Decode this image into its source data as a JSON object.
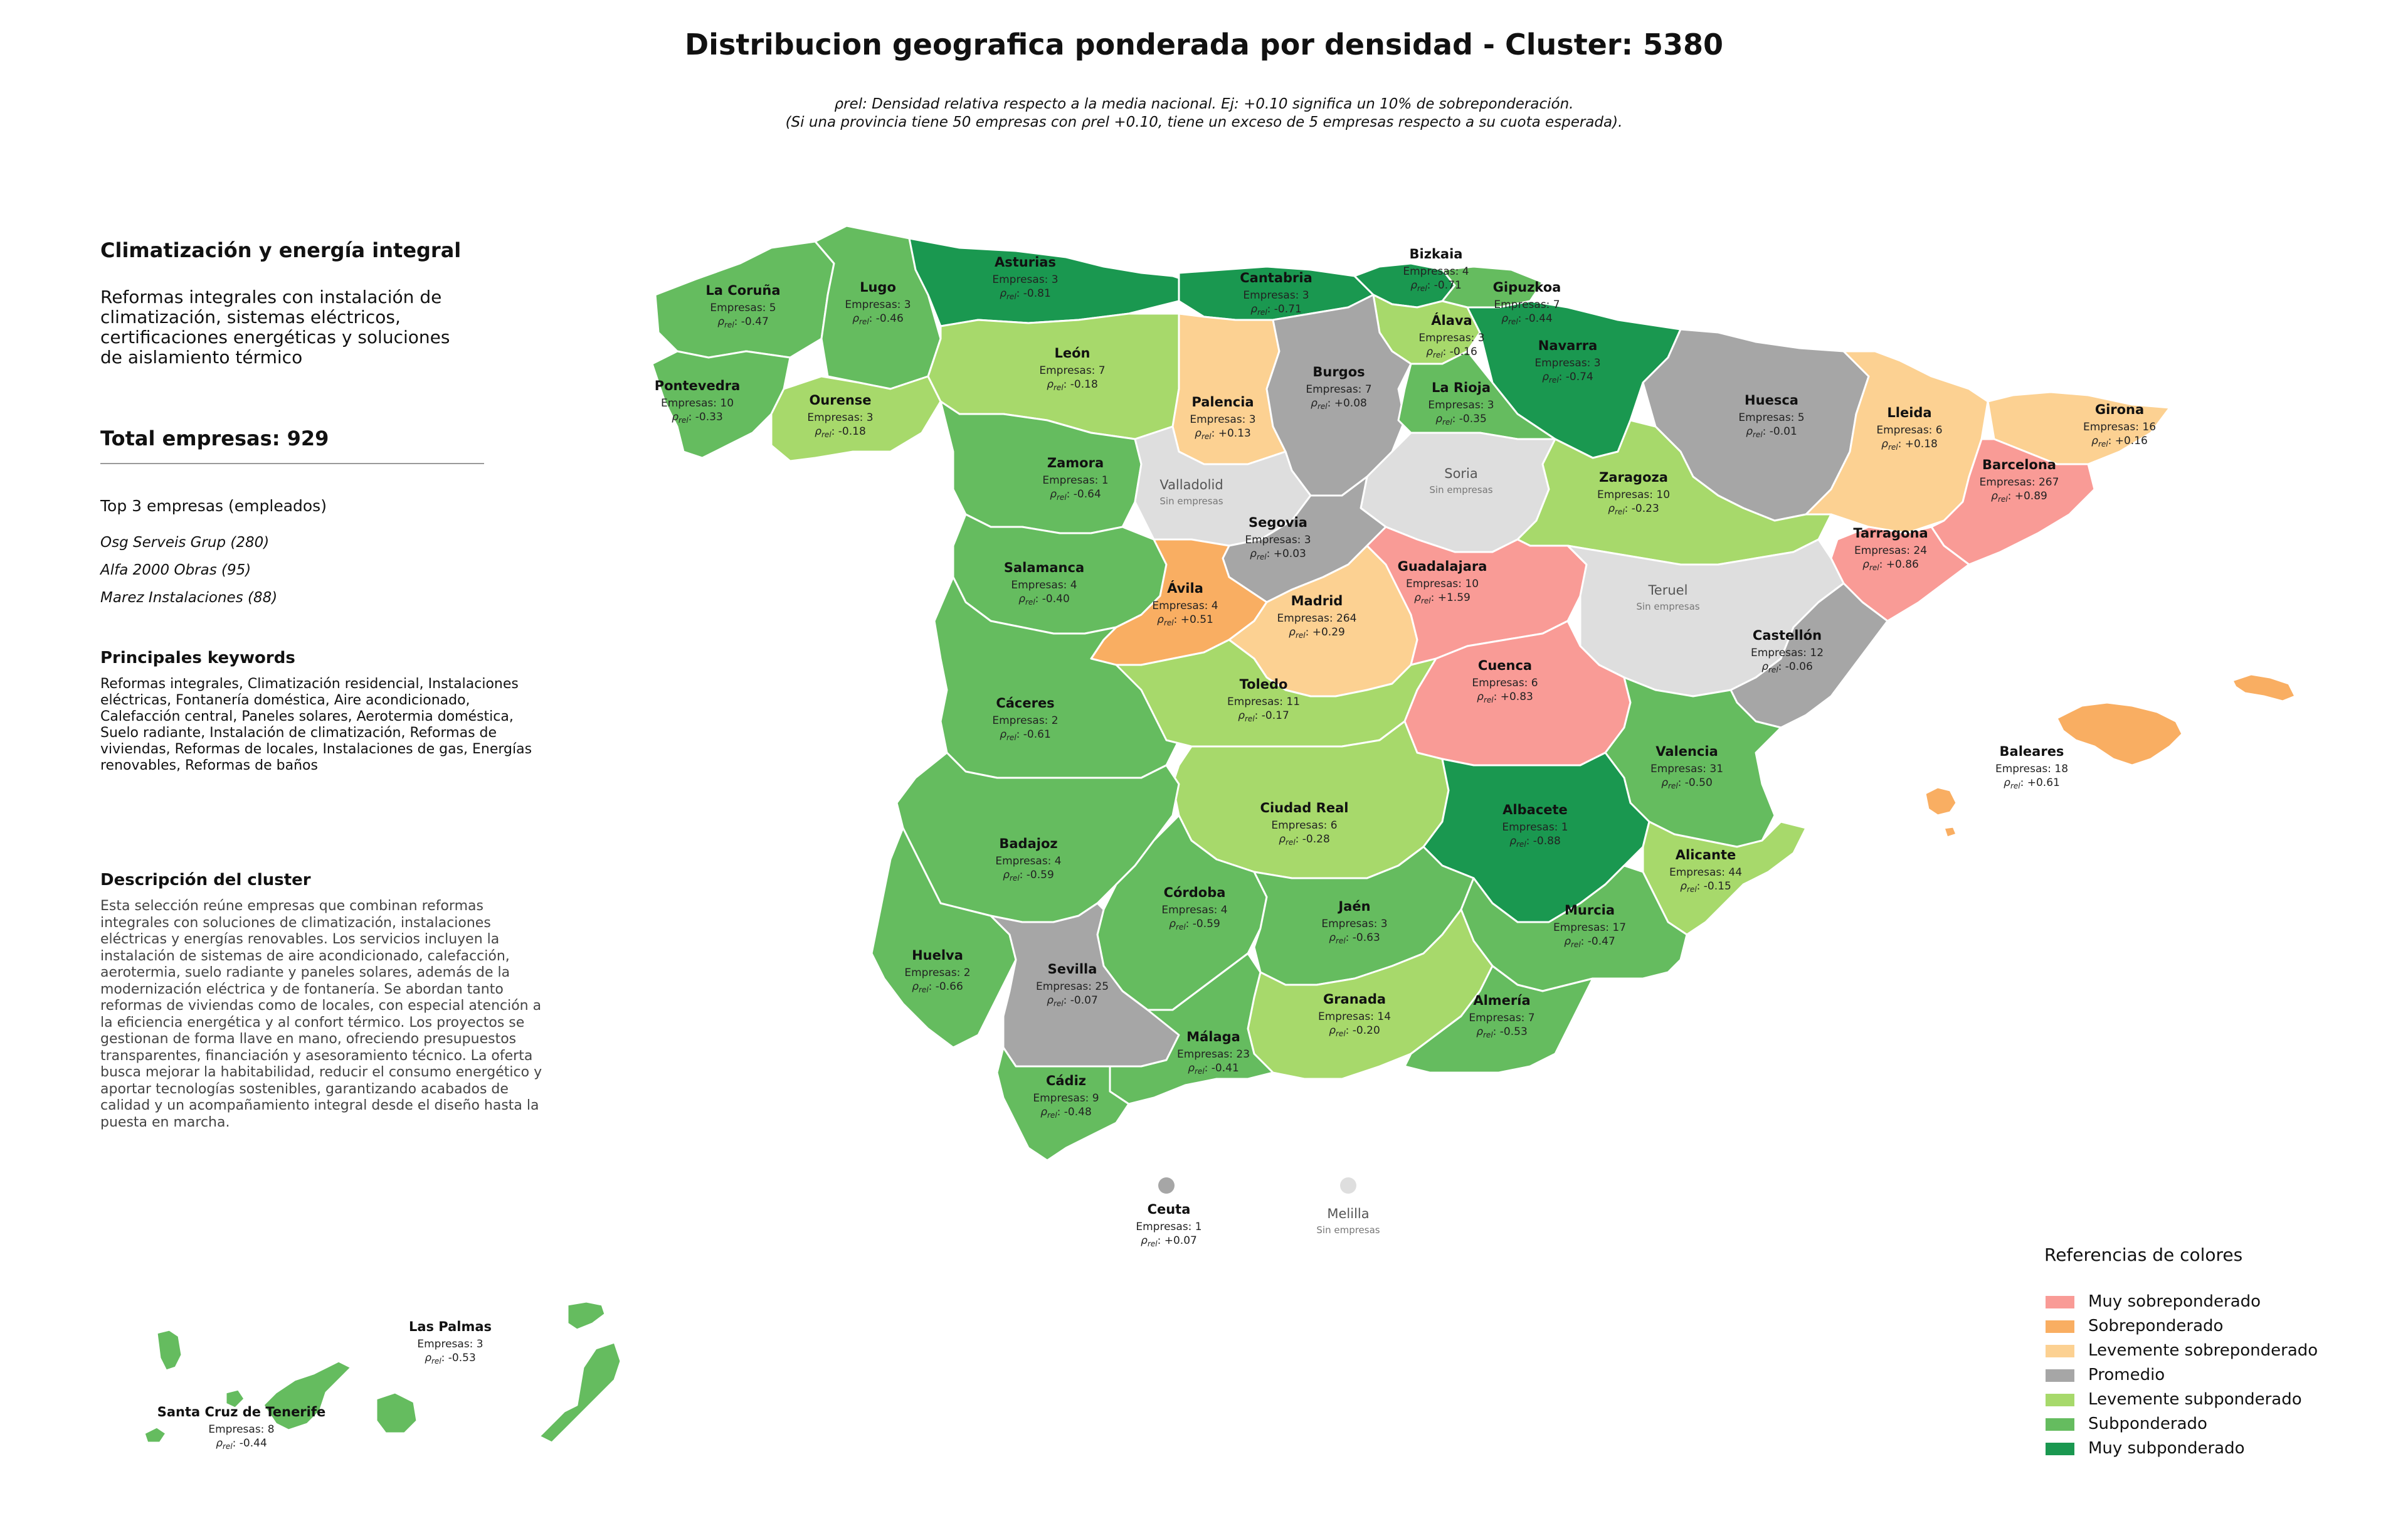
{
  "title": "Distribucion geografica ponderada por densidad - Cluster: 5380",
  "subtitle_line1": "ρrel: Densidad relativa respecto a la media nacional. Ej: +0.10 significa un 10% de sobreponderación.",
  "subtitle_line2": "(Si una provincia tiene 50 empresas con ρrel +0.10, tiene un exceso de 5 empresas respecto a su cuota esperada).",
  "sidebar": {
    "cluster_name": "Climatización y energía integral",
    "cluster_tagline": "Reformas integrales con instalación de climatización, sistemas eléctricos, certificaciones energéticas y soluciones de aislamiento térmico",
    "total_label": "Total empresas: 929",
    "top3_label": "Top 3 empresas (empleados)",
    "top_companies": [
      "Osg Serveis Grup (280)",
      "Alfa 2000 Obras (95)",
      "Marez Instalaciones (88)"
    ],
    "keywords_title": "Principales keywords",
    "keywords_text": "Reformas integrales, Climatización residencial, Instalaciones eléctricas, Fontanería doméstica, Aire acondicionado, Calefacción central, Paneles solares, Aerotermia doméstica, Suelo radiante, Instalación de climatización, Reformas de viviendas, Reformas de locales, Instalaciones de gas, Energías renovables, Reformas de baños",
    "description_title": "Descripción del cluster",
    "description_text": "Esta selección reúne empresas que combinan reformas integrales con soluciones de climatización, instalaciones eléctricas y energías renovables. Los servicios incluyen la instalación de sistemas de aire acondicionado, calefacción, aerotermia, suelo radiante y paneles solares, además de la modernización eléctrica y de fontanería. Se abordan tanto reformas de viviendas como de locales, con especial atención a la eficiencia energética y al confort térmico. Los proyectos se gestionan de forma llave en mano, ofreciendo presupuestos transparentes, financiación y asesoramiento técnico. La oferta busca mejorar la habitabilidad, reducir el consumo energético y aportar tecnologías sostenibles, garantizando acabados de calidad y un acompañamiento integral desde el diseño hasta la puesta en marcha."
  },
  "labels": {
    "count_prefix": "Empresas: ",
    "rho_symbol": "ρ",
    "rho_sub": "rel",
    "no_companies": "Sin empresas"
  },
  "legend": {
    "title": "Referencias de colores",
    "items": [
      {
        "label": "Muy sobreponderado",
        "color": "#f99b96"
      },
      {
        "label": "Sobreponderado",
        "color": "#f9ae62"
      },
      {
        "label": "Levemente sobreponderado",
        "color": "#fcd192"
      },
      {
        "label": "Promedio",
        "color": "#a6a6a6"
      },
      {
        "label": "Levemente subponderado",
        "color": "#a7d96b"
      },
      {
        "label": "Subponderado",
        "color": "#65bc5f"
      },
      {
        "label": "Muy subponderado",
        "color": "#1a9850"
      }
    ]
  },
  "provinces": [
    {
      "name": "La Coruña",
      "count": 5,
      "rho": "-0.47",
      "category": "Subponderado"
    },
    {
      "name": "Lugo",
      "count": 3,
      "rho": "-0.46",
      "category": "Subponderado"
    },
    {
      "name": "Asturias",
      "count": 3,
      "rho": "-0.81",
      "category": "Muy subponderado"
    },
    {
      "name": "Cantabria",
      "count": 3,
      "rho": "-0.71",
      "category": "Muy subponderado"
    },
    {
      "name": "Bizkaia",
      "count": 4,
      "rho": "-0.71",
      "category": "Muy subponderado"
    },
    {
      "name": "Gipuzkoa",
      "count": 7,
      "rho": "-0.44",
      "category": "Subponderado"
    },
    {
      "name": "Álava",
      "count": 3,
      "rho": "-0.16",
      "category": "Levemente subponderado"
    },
    {
      "name": "Navarra",
      "count": 3,
      "rho": "-0.74",
      "category": "Muy subponderado"
    },
    {
      "name": "Pontevedra",
      "count": 10,
      "rho": "-0.33",
      "category": "Subponderado"
    },
    {
      "name": "Ourense",
      "count": 3,
      "rho": "-0.18",
      "category": "Levemente subponderado"
    },
    {
      "name": "León",
      "count": 7,
      "rho": "-0.18",
      "category": "Levemente subponderado"
    },
    {
      "name": "Palencia",
      "count": 3,
      "rho": "+0.13",
      "category": "Levemente sobreponderado"
    },
    {
      "name": "Burgos",
      "count": 7,
      "rho": "+0.08",
      "category": "Promedio"
    },
    {
      "name": "La Rioja",
      "count": 3,
      "rho": "-0.35",
      "category": "Subponderado"
    },
    {
      "name": "Huesca",
      "count": 5,
      "rho": "-0.01",
      "category": "Promedio"
    },
    {
      "name": "Lleida",
      "count": 6,
      "rho": "+0.18",
      "category": "Levemente sobreponderado"
    },
    {
      "name": "Girona",
      "count": 16,
      "rho": "+0.16",
      "category": "Levemente sobreponderado"
    },
    {
      "name": "Barcelona",
      "count": 267,
      "rho": "+0.89",
      "category": "Muy sobreponderado"
    },
    {
      "name": "Tarragona",
      "count": 24,
      "rho": "+0.86",
      "category": "Muy sobreponderado"
    },
    {
      "name": "Zamora",
      "count": 1,
      "rho": "-0.64",
      "category": "Subponderado"
    },
    {
      "name": "Valladolid",
      "count": null,
      "rho": null,
      "category": "Sin empresas"
    },
    {
      "name": "Soria",
      "count": null,
      "rho": null,
      "category": "Sin empresas"
    },
    {
      "name": "Zaragoza",
      "count": 10,
      "rho": "-0.23",
      "category": "Levemente subponderado"
    },
    {
      "name": "Segovia",
      "count": 3,
      "rho": "+0.03",
      "category": "Promedio"
    },
    {
      "name": "Salamanca",
      "count": 4,
      "rho": "-0.40",
      "category": "Subponderado"
    },
    {
      "name": "Ávila",
      "count": 4,
      "rho": "+0.51",
      "category": "Sobreponderado"
    },
    {
      "name": "Madrid",
      "count": 264,
      "rho": "+0.29",
      "category": "Levemente sobreponderado"
    },
    {
      "name": "Guadalajara",
      "count": 10,
      "rho": "+1.59",
      "category": "Muy sobreponderado"
    },
    {
      "name": "Teruel",
      "count": null,
      "rho": null,
      "category": "Sin empresas"
    },
    {
      "name": "Castellón",
      "count": 12,
      "rho": "-0.06",
      "category": "Promedio"
    },
    {
      "name": "Cáceres",
      "count": 2,
      "rho": "-0.61",
      "category": "Subponderado"
    },
    {
      "name": "Toledo",
      "count": 11,
      "rho": "-0.17",
      "category": "Levemente subponderado"
    },
    {
      "name": "Cuenca",
      "count": 6,
      "rho": "+0.83",
      "category": "Muy sobreponderado"
    },
    {
      "name": "Valencia",
      "count": 31,
      "rho": "-0.50",
      "category": "Subponderado"
    },
    {
      "name": "Baleares",
      "count": 18,
      "rho": "+0.61",
      "category": "Sobreponderado"
    },
    {
      "name": "Ciudad Real",
      "count": 6,
      "rho": "-0.28",
      "category": "Levemente subponderado"
    },
    {
      "name": "Albacete",
      "count": 1,
      "rho": "-0.88",
      "category": "Muy subponderado"
    },
    {
      "name": "Badajoz",
      "count": 4,
      "rho": "-0.59",
      "category": "Subponderado"
    },
    {
      "name": "Alicante",
      "count": 44,
      "rho": "-0.15",
      "category": "Levemente subponderado"
    },
    {
      "name": "Córdoba",
      "count": 4,
      "rho": "-0.59",
      "category": "Subponderado"
    },
    {
      "name": "Jaén",
      "count": 3,
      "rho": "-0.63",
      "category": "Subponderado"
    },
    {
      "name": "Murcia",
      "count": 17,
      "rho": "-0.47",
      "category": "Subponderado"
    },
    {
      "name": "Huelva",
      "count": 2,
      "rho": "-0.66",
      "category": "Subponderado"
    },
    {
      "name": "Sevilla",
      "count": 25,
      "rho": "-0.07",
      "category": "Promedio"
    },
    {
      "name": "Granada",
      "count": 14,
      "rho": "-0.20",
      "category": "Levemente subponderado"
    },
    {
      "name": "Almería",
      "count": 7,
      "rho": "-0.53",
      "category": "Subponderado"
    },
    {
      "name": "Málaga",
      "count": 23,
      "rho": "-0.41",
      "category": "Subponderado"
    },
    {
      "name": "Cádiz",
      "count": 9,
      "rho": "-0.48",
      "category": "Subponderado"
    },
    {
      "name": "Ceuta",
      "count": 1,
      "rho": "+0.07",
      "category": "Promedio"
    },
    {
      "name": "Melilla",
      "count": null,
      "rho": null,
      "category": "Sin empresas"
    },
    {
      "name": "Las Palmas",
      "count": 3,
      "rho": "-0.53",
      "category": "Subponderado"
    },
    {
      "name": "Santa Cruz de Tenerife",
      "count": 8,
      "rho": "-0.44",
      "category": "Subponderado"
    }
  ],
  "colors": {
    "no_companies_fill": "#dedede",
    "border": "#ffffff"
  }
}
